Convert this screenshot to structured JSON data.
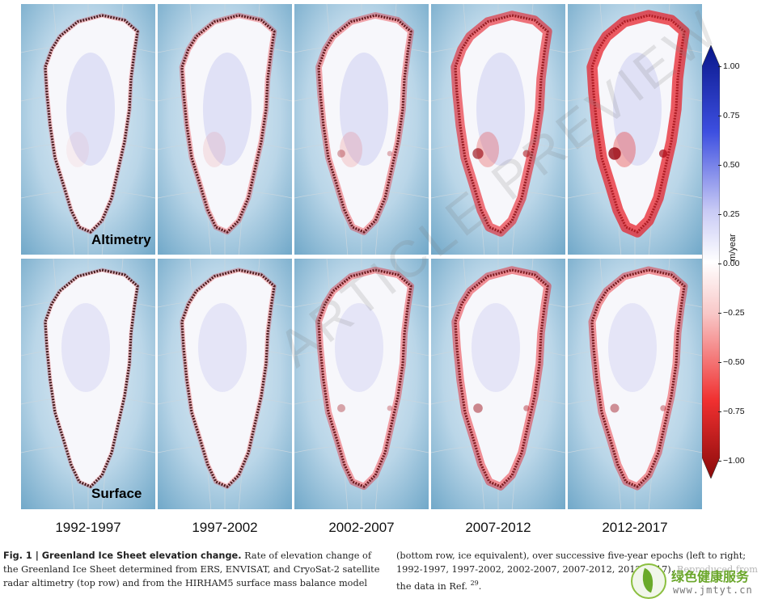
{
  "figure": {
    "row_labels": [
      "Altimetry",
      "Surface"
    ],
    "epochs": [
      "1992-1997",
      "1997-2002",
      "2002-2007",
      "2007-2012",
      "2012-2017"
    ],
    "colorbar": {
      "unit": "m/year",
      "ticks": [
        "1.00",
        "0.75",
        "0.50",
        "0.25",
        "0.00",
        "−0.25",
        "−0.50",
        "−0.75",
        "−1.00"
      ],
      "range": [
        -1.0,
        1.0
      ],
      "colors": {
        "positive": "#0a1f9e",
        "zero": "#ffffff",
        "negative": "#e8101a"
      }
    },
    "panel_shading": {
      "altimetry": [
        0.12,
        0.22,
        0.32,
        0.62,
        0.78
      ],
      "surface": [
        0.08,
        0.14,
        0.34,
        0.46,
        0.42
      ]
    }
  },
  "caption": {
    "title": "Fig. 1 | Greenland Ice Sheet elevation change.",
    "text_left": " Rate of elevation change of the Greenland Ice Sheet determined from ERS, ENVISAT, and CryoSat-2 satellite radar altimetry (top row) and from the HIRHAM5 surface mass balance model",
    "text_right": "(bottom row, ice equivalent), over successive five-year epochs (left to right; 1992-1997, 1997-2002, 2002-2007, 2007-2012, 2012-2017).",
    "text_faded": " Reproduced from",
    "text_end": "the data in Ref.",
    "ref": "29",
    "text_period": "."
  },
  "watermark": "ARTICLE PREVIEW",
  "site": {
    "name": "绿色健康服务",
    "url": "www.jmtyt.cn"
  }
}
